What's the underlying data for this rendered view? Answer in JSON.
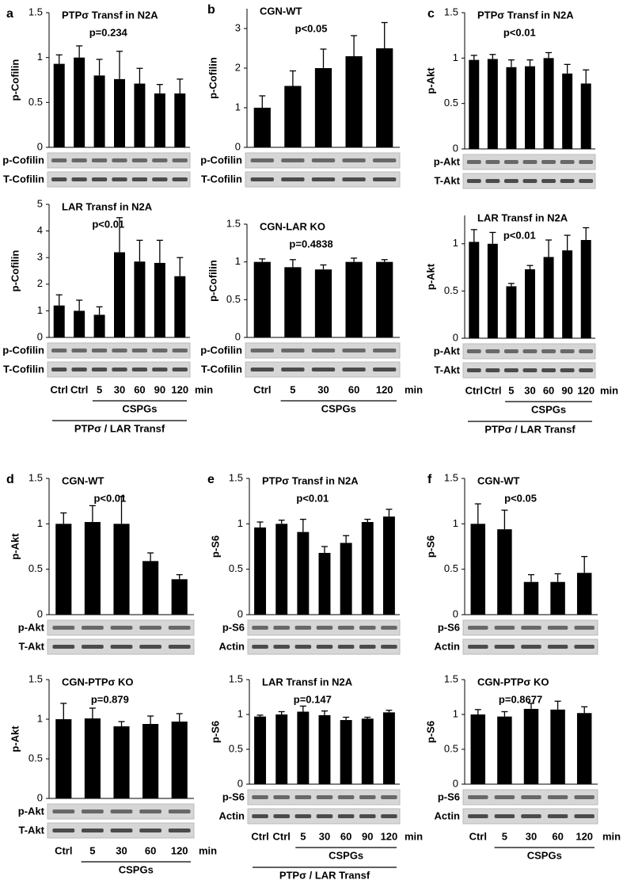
{
  "chart_data": [
    {
      "type": "bar",
      "panel": "a",
      "title": "PTPσ Transf in N2A",
      "annotation": "p=0.234",
      "ylabel": "p-Cofilin",
      "categories": [
        null,
        null,
        null,
        null,
        null,
        null,
        null
      ],
      "values": [
        0.93,
        1.0,
        0.8,
        0.76,
        0.71,
        0.6,
        0.6
      ],
      "errors": [
        0.1,
        0.13,
        0.18,
        0.31,
        0.17,
        0.1,
        0.16
      ],
      "color": "#000000",
      "ylim": [
        0,
        1.5
      ],
      "yticks": [
        0,
        0.5,
        1,
        1.5
      ],
      "blots": [
        "p-Cofilin",
        "T-Cofilin"
      ]
    },
    {
      "type": "bar",
      "title": "LAR Transf in N2A",
      "annotation": "p<0.01",
      "ylabel": "p-Cofilin",
      "categories": [
        "Ctrl",
        "Ctrl",
        "5",
        "30",
        "60",
        "90",
        "120"
      ],
      "values": [
        1.2,
        1.0,
        0.85,
        3.2,
        2.85,
        2.8,
        2.3
      ],
      "errors": [
        0.4,
        0.4,
        0.3,
        1.3,
        0.8,
        0.85,
        0.7
      ],
      "color": "#000000",
      "ylim": [
        0,
        5
      ],
      "yticks": [
        0,
        1,
        2,
        3,
        4,
        5
      ],
      "blots": [
        "p-Cofilin",
        "T-Cofilin"
      ],
      "x_unit": "min",
      "x_groups": [
        "CSPGs",
        "PTPσ / LAR Transf"
      ]
    },
    {
      "type": "bar",
      "panel": "b",
      "title": "CGN-WT",
      "annotation": "p<0.05",
      "ylabel": "p-Cofilin",
      "categories": [
        null,
        null,
        null,
        null,
        null
      ],
      "values": [
        1.0,
        1.55,
        2.0,
        2.3,
        2.5
      ],
      "errors": [
        0.3,
        0.38,
        0.48,
        0.52,
        0.65
      ],
      "color": "#000000",
      "ylim": [
        0,
        3.5
      ],
      "yticks": [
        0,
        1,
        2,
        3
      ],
      "blots": [
        "p-Cofilin",
        "T-Cofilin"
      ]
    },
    {
      "type": "bar",
      "title": "CGN-LAR KO",
      "annotation": "p=0.4838",
      "ylabel": "p-Cofilin",
      "categories": [
        "Ctrl",
        "5",
        "30",
        "60",
        "120"
      ],
      "values": [
        1.0,
        0.93,
        0.9,
        1.0,
        1.0
      ],
      "errors": [
        0.04,
        0.1,
        0.06,
        0.05,
        0.03
      ],
      "color": "#000000",
      "ylim": [
        0,
        1.5
      ],
      "yticks": [
        0,
        0.5,
        1,
        1.5
      ],
      "blots": [
        "p-Cofilin",
        "T-Cofilin"
      ],
      "x_unit": "min",
      "x_groups": [
        "CSPGs"
      ]
    },
    {
      "type": "bar",
      "panel": "c",
      "title": "PTPσ Transf in N2A",
      "annotation": "p<0.01",
      "ylabel": "p-Akt",
      "categories": [
        null,
        null,
        null,
        null,
        null,
        null,
        null
      ],
      "values": [
        0.98,
        0.99,
        0.9,
        0.91,
        1.0,
        0.83,
        0.72
      ],
      "errors": [
        0.05,
        0.05,
        0.08,
        0.07,
        0.06,
        0.1,
        0.15
      ],
      "color": "#000000",
      "ylim": [
        0,
        1.5
      ],
      "yticks": [
        0,
        0.5,
        1,
        1.5
      ],
      "blots": [
        "p-Akt",
        "T-Akt"
      ]
    },
    {
      "type": "bar",
      "title": "LAR Transf in N2A",
      "annotation": "p<0.01",
      "ylabel": "p-Akt",
      "categories": [
        "Ctrl",
        "Ctrl",
        "5",
        "30",
        "60",
        "90",
        "120"
      ],
      "values": [
        1.02,
        1.0,
        0.55,
        0.73,
        0.86,
        0.93,
        1.04
      ],
      "errors": [
        0.13,
        0.12,
        0.03,
        0.04,
        0.18,
        0.16,
        0.13
      ],
      "color": "#000000",
      "ylim": [
        0,
        1.3
      ],
      "yticks": [
        0,
        0.5,
        1
      ],
      "blots": [
        "p-Akt",
        "T-Akt"
      ],
      "x_unit": "min",
      "x_groups": [
        "CSPGs",
        "PTPσ / LAR Transf"
      ]
    },
    {
      "type": "bar",
      "panel": "d",
      "title": "CGN-WT",
      "annotation": "p<0.01",
      "ylabel": "p-Akt",
      "categories": [
        null,
        null,
        null,
        null,
        null
      ],
      "values": [
        1.0,
        1.02,
        1.0,
        0.59,
        0.39
      ],
      "errors": [
        0.12,
        0.18,
        0.3,
        0.09,
        0.05
      ],
      "color": "#000000",
      "ylim": [
        0,
        1.5
      ],
      "yticks": [
        0,
        0.5,
        1,
        1.5
      ],
      "blots": [
        "p-Akt",
        "T-Akt"
      ]
    },
    {
      "type": "bar",
      "title": "CGN-PTPσ KO",
      "annotation": "p=0.879",
      "ylabel": "p-Akt",
      "categories": [
        "Ctrl",
        "5",
        "30",
        "60",
        "120"
      ],
      "values": [
        1.0,
        1.01,
        0.91,
        0.94,
        0.97
      ],
      "errors": [
        0.2,
        0.13,
        0.06,
        0.1,
        0.1
      ],
      "color": "#000000",
      "ylim": [
        0,
        1.5
      ],
      "yticks": [
        0,
        0.5,
        1,
        1.5
      ],
      "blots": [
        "p-Akt",
        "T-Akt"
      ],
      "x_unit": "min",
      "x_groups": [
        "CSPGs"
      ]
    },
    {
      "type": "bar",
      "panel": "e",
      "title": "PTPσ Transf in N2A",
      "annotation": "p<0.01",
      "ylabel": "p-S6",
      "categories": [
        null,
        null,
        null,
        null,
        null,
        null,
        null
      ],
      "values": [
        0.96,
        1.0,
        0.91,
        0.68,
        0.79,
        1.02,
        1.08
      ],
      "errors": [
        0.06,
        0.04,
        0.14,
        0.07,
        0.08,
        0.03,
        0.08
      ],
      "color": "#000000",
      "ylim": [
        0,
        1.5
      ],
      "yticks": [
        0,
        0.5,
        1,
        1.5
      ],
      "blots": [
        "p-S6",
        "Actin"
      ]
    },
    {
      "type": "bar",
      "title": "LAR Transf in N2A",
      "annotation": "p=0.147",
      "ylabel": "p-S6",
      "categories": [
        "Ctrl",
        "Ctrl",
        "5",
        "30",
        "60",
        "90",
        "120"
      ],
      "values": [
        0.97,
        1.0,
        1.04,
        0.99,
        0.92,
        0.94,
        1.03
      ],
      "errors": [
        0.02,
        0.04,
        0.08,
        0.06,
        0.04,
        0.02,
        0.03
      ],
      "color": "#000000",
      "ylim": [
        0,
        1.5
      ],
      "yticks": [
        0,
        0.5,
        1,
        1.5
      ],
      "blots": [
        "p-S6",
        "Actin"
      ],
      "x_unit": "min",
      "x_groups": [
        "CSPGs",
        "PTPσ / LAR Transf"
      ]
    },
    {
      "type": "bar",
      "panel": "f",
      "title": "CGN-WT",
      "annotation": "p<0.05",
      "ylabel": "p-S6",
      "categories": [
        null,
        null,
        null,
        null,
        null
      ],
      "values": [
        1.0,
        0.94,
        0.36,
        0.36,
        0.46
      ],
      "errors": [
        0.22,
        0.21,
        0.08,
        0.09,
        0.18
      ],
      "color": "#000000",
      "ylim": [
        0,
        1.5
      ],
      "yticks": [
        0,
        0.5,
        1,
        1.5
      ],
      "blots": [
        "p-S6",
        "Actin"
      ]
    },
    {
      "type": "bar",
      "title": "CGN-PTPσ KO",
      "annotation": "p=0.8677",
      "ylabel": "p-S6",
      "categories": [
        "Ctrl",
        "5",
        "30",
        "60",
        "120"
      ],
      "values": [
        1.0,
        0.97,
        1.08,
        1.07,
        1.02
      ],
      "errors": [
        0.07,
        0.07,
        0.08,
        0.12,
        0.09
      ],
      "color": "#000000",
      "ylim": [
        0,
        1.5
      ],
      "yticks": [
        0,
        0.5,
        1,
        1.5
      ],
      "blots": [
        "p-S6",
        "Actin"
      ],
      "x_unit": "min",
      "x_groups": [
        "CSPGs"
      ]
    }
  ]
}
